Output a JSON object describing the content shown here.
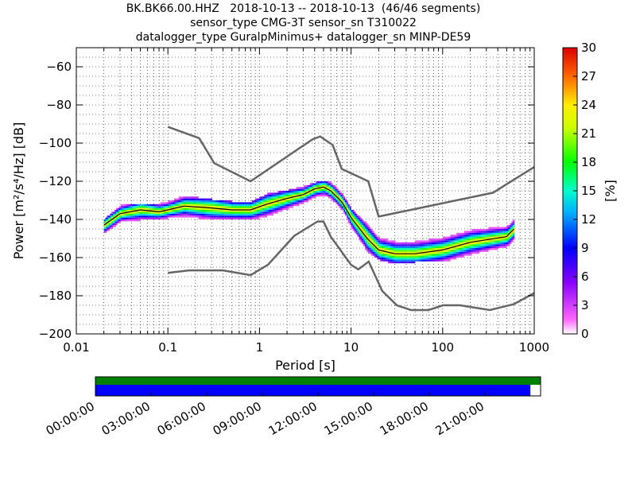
{
  "title_lines": [
    "BK.BK66.00.HHZ   2018-10-13 -- 2018-10-13  (46/46 segments)",
    "sensor_type CMG-3T sensor_sn T310022",
    "datalogger_type GuralpMinimus+ datalogger_sn MINP-DE59"
  ],
  "colors": {
    "nlnm_nhnm": "#666666",
    "median": "#000000",
    "coverage_top": "#008000",
    "coverage_bottom": "#0000ff"
  },
  "chart_data": [
    {
      "type": "heatmap",
      "subtype": "probabilistic power spectral density",
      "xlabel": "Period [s]",
      "ylabel": "Power [m²/s⁴/Hz] [dB]",
      "xscale": "log",
      "xlim": [
        0.01,
        1000
      ],
      "ylim": [
        -200,
        -50
      ],
      "xticks": [
        0.01,
        0.1,
        1,
        10,
        100,
        1000
      ],
      "xtick_labels": [
        "0.01",
        "0.1",
        "1",
        "10",
        "100",
        "1000"
      ],
      "yticks": [
        -200,
        -180,
        -160,
        -140,
        -120,
        -100,
        -80,
        -60
      ],
      "ytick_labels": [
        "−200",
        "−180",
        "−160",
        "−140",
        "−120",
        "−100",
        "−80",
        "−60"
      ],
      "grid": "dotted",
      "colorbar": {
        "label": "[%]",
        "range": [
          0,
          30
        ],
        "ticks": [
          0,
          3,
          6,
          9,
          12,
          15,
          18,
          21,
          24,
          27,
          30
        ],
        "tick_labels": [
          "0",
          "3",
          "6",
          "9",
          "12",
          "15",
          "18",
          "21",
          "24",
          "27",
          "30"
        ]
      },
      "series": [
        {
          "role": "noise model upper",
          "x": [
            0.1,
            0.22,
            0.32,
            0.8,
            3.8,
            4.6,
            6.3,
            7.9,
            15.4,
            20,
            354.8,
            1000
          ],
          "y": [
            -91.5,
            -97.4,
            -110.5,
            -120,
            -98,
            -96.5,
            -101,
            -113.5,
            -120,
            -138.5,
            -126,
            -112.5
          ]
        },
        {
          "role": "noise model lower",
          "x": [
            0.1,
            0.17,
            0.4,
            0.8,
            1.24,
            2.4,
            4.3,
            5,
            6,
            10,
            12,
            15.6,
            21.9,
            31.6,
            45,
            70,
            101,
            154,
            328,
            600,
            1000
          ],
          "y": [
            -168,
            -166.7,
            -166.7,
            -169.2,
            -163.7,
            -148.6,
            -141.1,
            -141.1,
            -149,
            -163.8,
            -166.2,
            -162.1,
            -177.5,
            -185,
            -187.5,
            -187.5,
            -185,
            -185,
            -187.5,
            -184.4,
            -178.6
          ]
        },
        {
          "role": "median",
          "x": [
            0.02,
            0.03,
            0.05,
            0.08,
            0.1,
            0.15,
            0.3,
            0.5,
            0.8,
            1.2,
            2,
            3,
            4,
            5,
            6,
            8,
            10,
            15,
            20,
            30,
            50,
            100,
            200,
            500,
            600
          ],
          "y": [
            -143,
            -137,
            -135,
            -136,
            -135,
            -133,
            -134,
            -135,
            -135,
            -132,
            -129,
            -127,
            -124,
            -123,
            -125,
            -131,
            -139,
            -150,
            -156,
            -158,
            -158,
            -156,
            -152,
            -149,
            -145
          ]
        }
      ],
      "density_bands": [
        {
          "x": [
            0.02,
            0.03,
            0.05,
            0.08,
            0.1,
            0.15,
            0.3,
            0.5,
            0.8,
            1.2,
            2,
            3,
            4,
            5,
            6,
            8,
            10,
            15,
            20,
            30,
            50,
            100,
            200,
            500,
            600
          ],
          "y_low": [
            -147,
            -141,
            -140,
            -140,
            -139,
            -138,
            -140,
            -140,
            -140,
            -138,
            -134,
            -131,
            -128,
            -127,
            -129,
            -135,
            -144,
            -157,
            -161,
            -163,
            -162,
            -162,
            -158,
            -154,
            -150
          ],
          "y_high": [
            -140,
            -133,
            -132,
            -132,
            -131,
            -128,
            -130,
            -131,
            -131,
            -127,
            -125,
            -123,
            -121,
            -120,
            -121,
            -127,
            -135,
            -143,
            -150,
            -152,
            -152,
            -150,
            -146,
            -144,
            -140
          ]
        }
      ]
    },
    {
      "type": "timeline",
      "subtype": "data coverage",
      "tick_labels": [
        "00:00:00",
        "03:00:00",
        "06:00:00",
        "09:00:00",
        "12:00:00",
        "15:00:00",
        "18:00:00",
        "21:00:00"
      ],
      "coverage_fraction": 0.977
    }
  ]
}
